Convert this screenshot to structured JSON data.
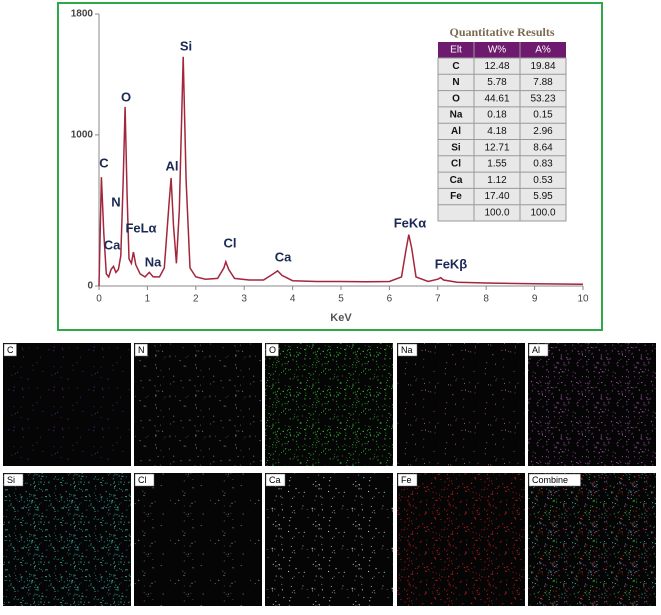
{
  "chart_data": {
    "type": "line",
    "xlabel": "KeV",
    "xlim": [
      0,
      10
    ],
    "ylim": [
      0,
      1800
    ],
    "xticks": [
      0,
      1,
      2,
      3,
      4,
      5,
      6,
      7,
      8,
      9,
      10
    ],
    "yticks": [
      0,
      1000,
      1800
    ],
    "color": "#a3263c",
    "x": [
      0,
      0.02,
      0.05,
      0.1,
      0.15,
      0.2,
      0.25,
      0.3,
      0.35,
      0.4,
      0.45,
      0.5,
      0.54,
      0.58,
      0.62,
      0.67,
      0.71,
      0.76,
      0.85,
      0.95,
      1.04,
      1.12,
      1.25,
      1.35,
      1.45,
      1.49,
      1.54,
      1.6,
      1.66,
      1.74,
      1.8,
      1.88,
      2.0,
      2.2,
      2.45,
      2.58,
      2.62,
      2.68,
      2.8,
      3.1,
      3.4,
      3.6,
      3.69,
      3.78,
      4.0,
      4.5,
      5.0,
      5.5,
      6.0,
      6.25,
      6.35,
      6.4,
      6.46,
      6.55,
      6.8,
      7.0,
      7.06,
      7.12,
      7.4,
      8.0,
      9.0,
      10.0
    ],
    "values": [
      0,
      300,
      720,
      350,
      80,
      60,
      110,
      130,
      90,
      110,
      200,
      700,
      1185,
      600,
      180,
      150,
      225,
      140,
      80,
      60,
      90,
      60,
      60,
      120,
      560,
      715,
      400,
      150,
      500,
      1517,
      700,
      120,
      60,
      45,
      50,
      120,
      160,
      110,
      50,
      40,
      40,
      80,
      100,
      70,
      35,
      30,
      30,
      28,
      30,
      60,
      250,
      340,
      250,
      60,
      30,
      45,
      55,
      40,
      25,
      20,
      15,
      12
    ],
    "annotations": [
      "C",
      "Ca",
      "N",
      "O",
      "FeLα",
      "Na",
      "Al",
      "Si",
      "Cl",
      "Ca",
      "FeKα",
      "FeKβ"
    ]
  },
  "table": {
    "title": "Quantitative Results",
    "header": [
      "Elt",
      "W%",
      "A%"
    ],
    "rows": [
      [
        "C",
        "12.48",
        "19.84"
      ],
      [
        "N",
        "5.78",
        "7.88"
      ],
      [
        "O",
        "44.61",
        "53.23"
      ],
      [
        "Na",
        "0.18",
        "0.15"
      ],
      [
        "Al",
        "4.18",
        "2.96"
      ],
      [
        "Si",
        "12.71",
        "8.64"
      ],
      [
        "Cl",
        "1.55",
        "0.83"
      ],
      [
        "Ca",
        "1.12",
        "0.53"
      ],
      [
        "Fe",
        "17.40",
        "5.95"
      ]
    ],
    "totals": [
      "100.0",
      "100.0"
    ]
  },
  "maps": [
    {
      "label": "C",
      "color": "#6a2a9a"
    },
    {
      "label": "N",
      "color": "#9a8aa8"
    },
    {
      "label": "O",
      "color": "#38d038"
    },
    {
      "label": "Na",
      "color": "#c08070"
    },
    {
      "label": "Al",
      "color": "#d070d8"
    },
    {
      "label": "Si",
      "color": "#40c8c0"
    },
    {
      "label": "Cl",
      "color": "#a0a0a0"
    },
    {
      "label": "Ca",
      "color": "#d8d8d8"
    },
    {
      "label": "Fe",
      "color": "#e02020"
    },
    {
      "label": "Combine",
      "color": "#60b070"
    }
  ]
}
